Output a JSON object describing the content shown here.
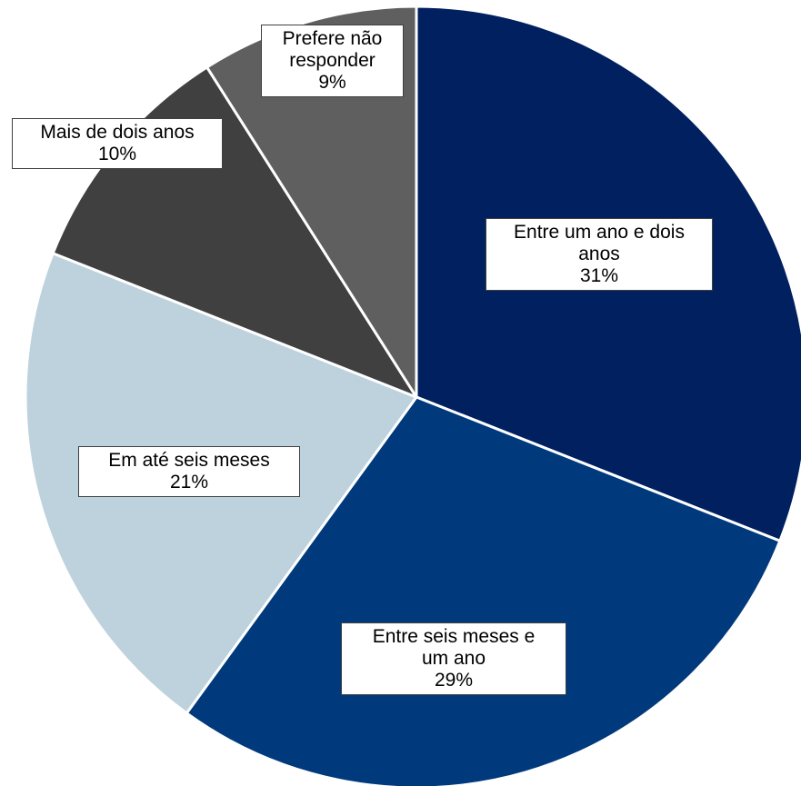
{
  "chart_data": {
    "type": "pie",
    "title": "",
    "slices": [
      {
        "label_lines": [
          "Entre um ano e dois",
          "anos"
        ],
        "label": "Entre um ano e dois anos",
        "pct_label": "31%",
        "value": 31,
        "color": "#002060"
      },
      {
        "label_lines": [
          "Entre seis meses e",
          "um ano"
        ],
        "label": "Entre seis meses e um ano",
        "pct_label": "29%",
        "value": 29,
        "color": "#003A7D"
      },
      {
        "label_lines": [
          "Em até seis meses"
        ],
        "label": "Em até seis meses",
        "pct_label": "21%",
        "value": 21,
        "color": "#BDD2DC"
      },
      {
        "label_lines": [
          "Mais de dois anos"
        ],
        "label": "Mais de dois anos",
        "pct_label": "10%",
        "value": 10,
        "color": "#404040"
      },
      {
        "label_lines": [
          "Prefere não",
          "responder"
        ],
        "label": "Prefere não responder",
        "pct_label": "9%",
        "value": 9,
        "color": "#5F5F5F"
      }
    ],
    "start": "top, clockwise",
    "legend": "none (data callouts)"
  }
}
